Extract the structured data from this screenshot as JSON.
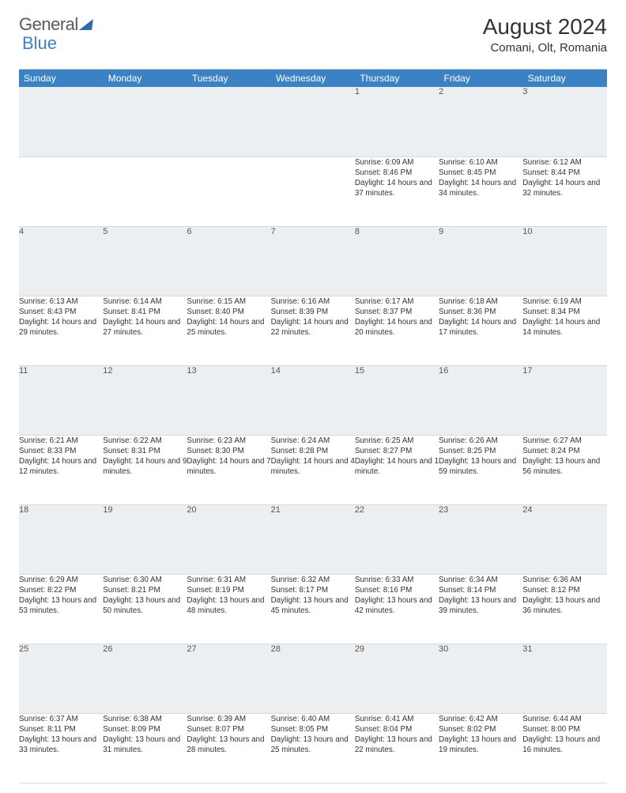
{
  "brand": {
    "part1": "General",
    "part2": "Blue"
  },
  "title": {
    "month": "August 2024",
    "location": "Comani, Olt, Romania"
  },
  "colors": {
    "header_bg": "#3b82c4",
    "header_text": "#ffffff",
    "daynum_bg": "#eceff1",
    "text": "#333333",
    "rule": "#d9d9d9"
  },
  "layout": {
    "cols": 7,
    "rows": 5
  },
  "weekdays": [
    "Sunday",
    "Monday",
    "Tuesday",
    "Wednesday",
    "Thursday",
    "Friday",
    "Saturday"
  ],
  "weeks": [
    [
      null,
      null,
      null,
      null,
      {
        "n": "1",
        "sunrise": "6:09 AM",
        "sunset": "8:46 PM",
        "daylight": "14 hours and 37 minutes."
      },
      {
        "n": "2",
        "sunrise": "6:10 AM",
        "sunset": "8:45 PM",
        "daylight": "14 hours and 34 minutes."
      },
      {
        "n": "3",
        "sunrise": "6:12 AM",
        "sunset": "8:44 PM",
        "daylight": "14 hours and 32 minutes."
      }
    ],
    [
      {
        "n": "4",
        "sunrise": "6:13 AM",
        "sunset": "8:43 PM",
        "daylight": "14 hours and 29 minutes."
      },
      {
        "n": "5",
        "sunrise": "6:14 AM",
        "sunset": "8:41 PM",
        "daylight": "14 hours and 27 minutes."
      },
      {
        "n": "6",
        "sunrise": "6:15 AM",
        "sunset": "8:40 PM",
        "daylight": "14 hours and 25 minutes."
      },
      {
        "n": "7",
        "sunrise": "6:16 AM",
        "sunset": "8:39 PM",
        "daylight": "14 hours and 22 minutes."
      },
      {
        "n": "8",
        "sunrise": "6:17 AM",
        "sunset": "8:37 PM",
        "daylight": "14 hours and 20 minutes."
      },
      {
        "n": "9",
        "sunrise": "6:18 AM",
        "sunset": "8:36 PM",
        "daylight": "14 hours and 17 minutes."
      },
      {
        "n": "10",
        "sunrise": "6:19 AM",
        "sunset": "8:34 PM",
        "daylight": "14 hours and 14 minutes."
      }
    ],
    [
      {
        "n": "11",
        "sunrise": "6:21 AM",
        "sunset": "8:33 PM",
        "daylight": "14 hours and 12 minutes."
      },
      {
        "n": "12",
        "sunrise": "6:22 AM",
        "sunset": "8:31 PM",
        "daylight": "14 hours and 9 minutes."
      },
      {
        "n": "13",
        "sunrise": "6:23 AM",
        "sunset": "8:30 PM",
        "daylight": "14 hours and 7 minutes."
      },
      {
        "n": "14",
        "sunrise": "6:24 AM",
        "sunset": "8:28 PM",
        "daylight": "14 hours and 4 minutes."
      },
      {
        "n": "15",
        "sunrise": "6:25 AM",
        "sunset": "8:27 PM",
        "daylight": "14 hours and 1 minute."
      },
      {
        "n": "16",
        "sunrise": "6:26 AM",
        "sunset": "8:25 PM",
        "daylight": "13 hours and 59 minutes."
      },
      {
        "n": "17",
        "sunrise": "6:27 AM",
        "sunset": "8:24 PM",
        "daylight": "13 hours and 56 minutes."
      }
    ],
    [
      {
        "n": "18",
        "sunrise": "6:29 AM",
        "sunset": "8:22 PM",
        "daylight": "13 hours and 53 minutes."
      },
      {
        "n": "19",
        "sunrise": "6:30 AM",
        "sunset": "8:21 PM",
        "daylight": "13 hours and 50 minutes."
      },
      {
        "n": "20",
        "sunrise": "6:31 AM",
        "sunset": "8:19 PM",
        "daylight": "13 hours and 48 minutes."
      },
      {
        "n": "21",
        "sunrise": "6:32 AM",
        "sunset": "8:17 PM",
        "daylight": "13 hours and 45 minutes."
      },
      {
        "n": "22",
        "sunrise": "6:33 AM",
        "sunset": "8:16 PM",
        "daylight": "13 hours and 42 minutes."
      },
      {
        "n": "23",
        "sunrise": "6:34 AM",
        "sunset": "8:14 PM",
        "daylight": "13 hours and 39 minutes."
      },
      {
        "n": "24",
        "sunrise": "6:36 AM",
        "sunset": "8:12 PM",
        "daylight": "13 hours and 36 minutes."
      }
    ],
    [
      {
        "n": "25",
        "sunrise": "6:37 AM",
        "sunset": "8:11 PM",
        "daylight": "13 hours and 33 minutes."
      },
      {
        "n": "26",
        "sunrise": "6:38 AM",
        "sunset": "8:09 PM",
        "daylight": "13 hours and 31 minutes."
      },
      {
        "n": "27",
        "sunrise": "6:39 AM",
        "sunset": "8:07 PM",
        "daylight": "13 hours and 28 minutes."
      },
      {
        "n": "28",
        "sunrise": "6:40 AM",
        "sunset": "8:05 PM",
        "daylight": "13 hours and 25 minutes."
      },
      {
        "n": "29",
        "sunrise": "6:41 AM",
        "sunset": "8:04 PM",
        "daylight": "13 hours and 22 minutes."
      },
      {
        "n": "30",
        "sunrise": "6:42 AM",
        "sunset": "8:02 PM",
        "daylight": "13 hours and 19 minutes."
      },
      {
        "n": "31",
        "sunrise": "6:44 AM",
        "sunset": "8:00 PM",
        "daylight": "13 hours and 16 minutes."
      }
    ]
  ],
  "labels": {
    "sunrise_prefix": "Sunrise: ",
    "sunset_prefix": "Sunset: ",
    "daylight_prefix": "Daylight: "
  }
}
